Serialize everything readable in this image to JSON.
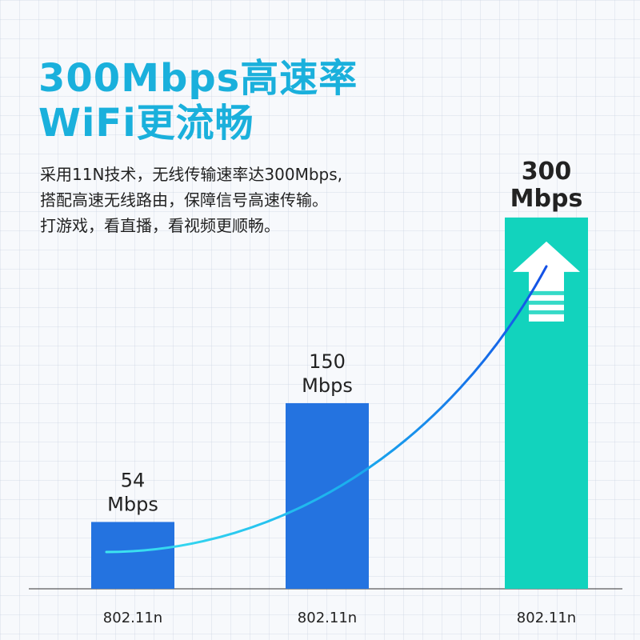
{
  "headline": {
    "line1": "300Mbps高速率",
    "line2": "WiFi更流畅"
  },
  "description": [
    "采用11N技术，无线传输速率达300Mbps,",
    "搭配高速无线路由，保障信号高速传输。",
    "打游戏，看直播，看视频更顺畅。"
  ],
  "colors": {
    "bar_blue": "#2473e0",
    "bar_teal": "#12d3bd",
    "headline": "#1ab0dc"
  },
  "chart_data": {
    "type": "bar",
    "categories": [
      "802.11n",
      "802.11n",
      "802.11n"
    ],
    "values": [
      54,
      150,
      300
    ],
    "value_labels": [
      [
        "54",
        "Mbps"
      ],
      [
        "150",
        "Mbps"
      ],
      [
        "300",
        "Mbps"
      ]
    ],
    "ylim": [
      0,
      340
    ],
    "bar_colors": [
      "#2473e0",
      "#2473e0",
      "#12d3bd"
    ],
    "grid": true,
    "xlabel": "",
    "ylabel": "",
    "trend_curve": true,
    "highlight_icon": "up-arrow-icon"
  }
}
